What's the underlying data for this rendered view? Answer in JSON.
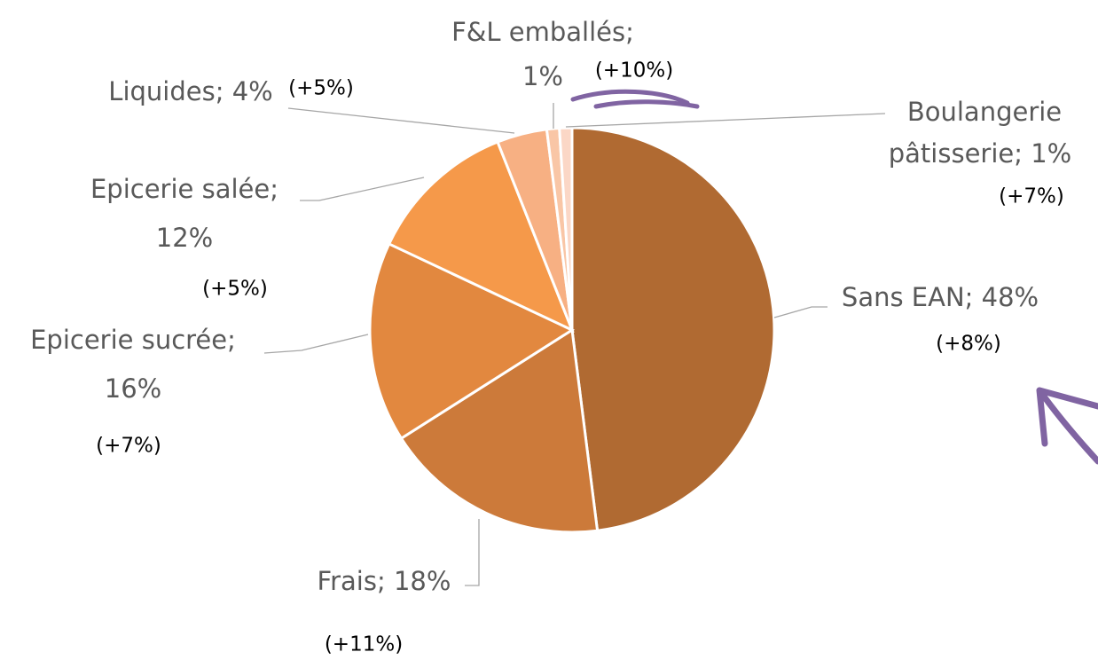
{
  "chart_data": {
    "type": "pie",
    "values": [
      48,
      18,
      16,
      12,
      4,
      1,
      1
    ],
    "value_labels": [
      [
        "Sans EAN; 48%"
      ],
      [
        "Frais; 18%"
      ],
      [
        "Epicerie sucrée;",
        "16%"
      ],
      [
        "Epicerie salée;",
        "12%"
      ],
      [
        "Liquides; 4%"
      ],
      [
        "F&L emballés;",
        "1%"
      ],
      [
        "Boulangerie",
        "pâtisserie; 1%"
      ]
    ],
    "annotations": [
      "(+8%)",
      "(+11%)",
      "(+7%)",
      "(+5%)",
      "(+5%)",
      "(+10%)",
      "(+7%)"
    ],
    "colors": [
      "#b06a32",
      "#cc7a3a",
      "#e2883f",
      "#f5994a",
      "#f7b083",
      "#f9c6a6",
      "#fbd7c6"
    ]
  }
}
